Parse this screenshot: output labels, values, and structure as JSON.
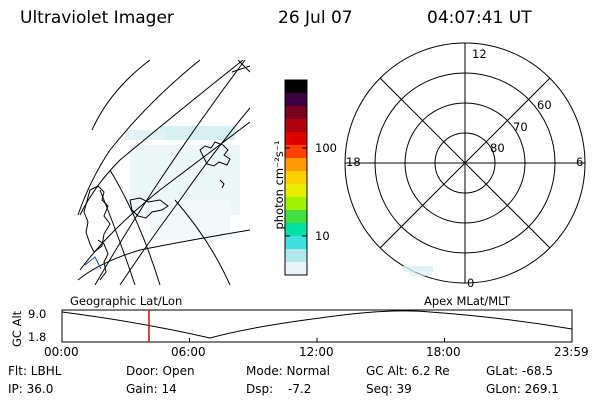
{
  "header": {
    "instrument": "Ultraviolet Imager",
    "date": "26 Jul 07",
    "time": "04:07:41 UT"
  },
  "left_panel": {
    "label": "Geographic Lat/Lon"
  },
  "right_panel": {
    "label": "Apex MLat/MLT",
    "mlt_labels": {
      "top": "12",
      "left": "18",
      "right": "6",
      "bottom": "0"
    },
    "mlat_labels": [
      "60",
      "70",
      "80"
    ]
  },
  "colorbar": {
    "unit": "photon cm⁻²s⁻¹",
    "tick_100": "100",
    "tick_10": "10",
    "colors": [
      "#000000",
      "#3a0040",
      "#7a0020",
      "#b00010",
      "#e00000",
      "#ff4000",
      "#ff9a00",
      "#ffd000",
      "#e8f000",
      "#a0f000",
      "#40e040",
      "#00e0a0",
      "#40e0e0",
      "#b0e8ee",
      "#e8f4f6"
    ]
  },
  "timeline": {
    "axis_label": "GC Alt",
    "y_top": "9.0",
    "y_bottom": "1.8",
    "ticks": [
      "00:00",
      "06:00",
      "12:00",
      "18:00",
      "23:59"
    ],
    "cursor_time": "04:07"
  },
  "footer": {
    "filter": "Flt: LBHL",
    "ip": "IP: 36.0",
    "door": "Door: Open",
    "gain": "Gain: 14",
    "mode": "Mode: Normal",
    "dsp_label": "Dsp:",
    "dsp_value": "-7.2",
    "gc_alt": "GC Alt: 6.2 Re",
    "seq": "Seq: 39",
    "glat": "GLat: -68.5",
    "glon": "GLon: 269.1"
  }
}
